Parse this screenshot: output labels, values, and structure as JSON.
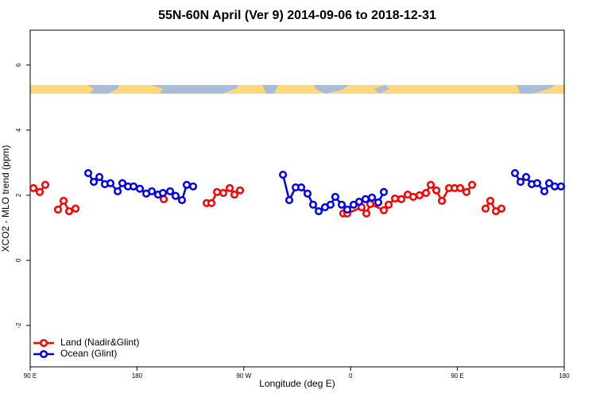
{
  "chart_data": {
    "type": "line",
    "title": "55N-60N April (Ver 9)   2014-09-06 to 2018-12-31",
    "xlabel": "Longitude (deg E)",
    "ylabel": "XCO2 - MLO trend (ppm)",
    "xlim": [
      90,
      540
    ],
    "ylim": [
      -3.27,
      7.07
    ],
    "xticks": [
      {
        "value": 90,
        "label": "90 E"
      },
      {
        "value": 180,
        "label": "180"
      },
      {
        "value": 270,
        "label": "90 W"
      },
      {
        "value": 360,
        "label": "0"
      },
      {
        "value": 450,
        "label": "90 E"
      },
      {
        "value": 540,
        "label": "180"
      }
    ],
    "yticks": [
      -2,
      0,
      2,
      4,
      6
    ],
    "legend": "bottom-left",
    "series": [
      {
        "name": "Land (Nadir&Glint)",
        "color": "#ff0000",
        "x": [
          92.7,
          98,
          102.7,
          108,
          113.4,
          118.1,
          122.8,
          128.2,
          165,
          202.5,
          220.6,
          238.7,
          242.7,
          247.4,
          252.7,
          258.1,
          262.1,
          266.8,
          310.3,
          353.8,
          357.2,
          369.2,
          373.3,
          376.6,
          388,
          392,
          397.4,
          402.7,
          408.1,
          412.8,
          418.1,
          423.5,
          427.5,
          432.2,
          436.9,
          442.9,
          447.6,
          452.3,
          457.6,
          462.3,
          467.7,
          473.7,
          477.7,
          482.4,
          487.1
        ],
        "values": [
          2.22,
          2.1,
          2.32,
          null,
          1.56,
          1.83,
          1.51,
          1.59,
          null,
          1.88,
          null,
          1.76,
          1.76,
          2.1,
          2.07,
          2.22,
          2.02,
          2.15,
          null,
          1.44,
          1.44,
          1.63,
          1.44,
          1.73,
          1.54,
          1.71,
          1.9,
          1.88,
          2.02,
          1.95,
          2.0,
          2.07,
          2.32,
          2.15,
          1.83,
          2.22,
          2.22,
          2.22,
          2.1,
          2.32,
          null,
          1.59,
          1.83,
          1.51,
          1.59
        ]
      },
      {
        "name": "Ocean (Glint)",
        "color": "#0000ee",
        "x": [
          138.9,
          143.6,
          148.3,
          152.9,
          157.6,
          163.7,
          167.7,
          172.4,
          177.1,
          182.4,
          187.8,
          192.5,
          197.8,
          201.8,
          207.9,
          212.5,
          217.9,
          221.9,
          227.3,
          265.4,
          303,
          308.3,
          313.7,
          318.4,
          323.7,
          328.4,
          333.1,
          338.4,
          343.1,
          347.1,
          352.5,
          357.2,
          362.5,
          367.2,
          372.6,
          378,
          383.3,
          388,
          442.9,
          498.5,
          503.2,
          507.9,
          512.6,
          517.2,
          523.3,
          527.3,
          532,
          537.3
        ],
        "values": [
          2.68,
          2.41,
          2.56,
          2.34,
          2.37,
          2.12,
          2.37,
          2.27,
          2.27,
          2.2,
          2.05,
          2.12,
          2.02,
          2.07,
          2.12,
          1.98,
          1.85,
          2.32,
          2.27,
          null,
          2.63,
          1.85,
          2.24,
          2.24,
          2.05,
          1.71,
          1.51,
          1.63,
          1.71,
          1.95,
          1.71,
          1.56,
          1.71,
          1.8,
          1.88,
          1.93,
          1.78,
          2.1,
          null,
          2.68,
          2.41,
          2.56,
          2.34,
          2.37,
          2.12,
          2.37,
          2.27,
          2.27
        ]
      }
    ]
  }
}
